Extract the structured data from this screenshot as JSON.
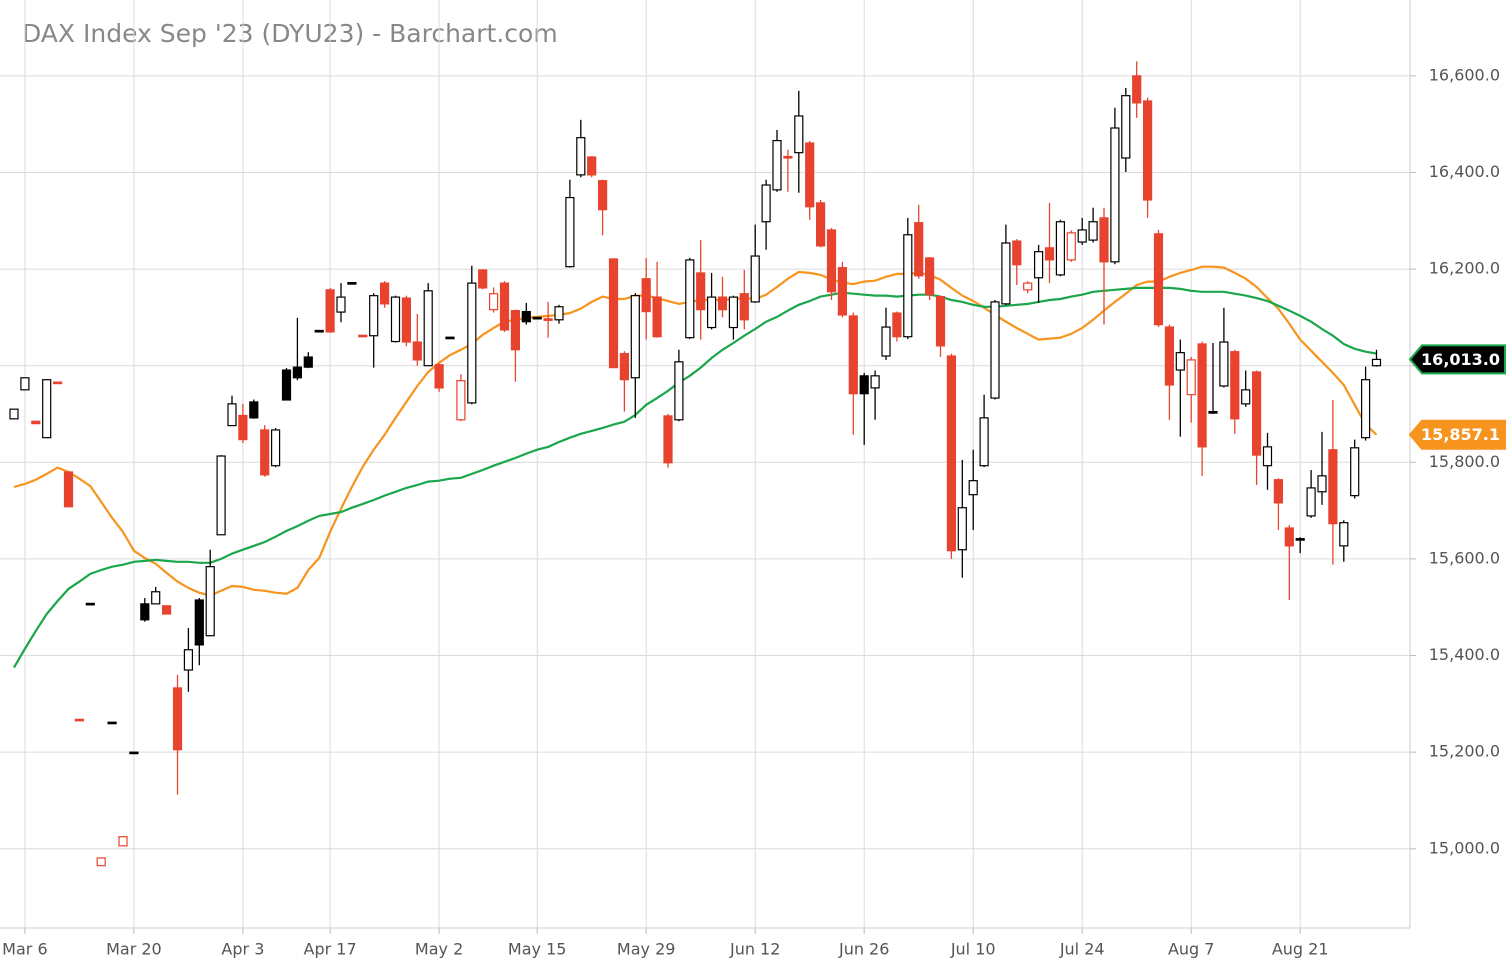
{
  "chart_data": {
    "type": "candlestick",
    "title": "DAX Index Sep '23 (DYU23) - Barchart.com",
    "categories": [
      null,
      "Mar 6",
      null,
      null,
      null,
      null,
      null,
      null,
      null,
      null,
      null,
      "Mar 20",
      null,
      null,
      null,
      null,
      null,
      null,
      null,
      null,
      null,
      "Apr 3",
      null,
      null,
      null,
      null,
      null,
      null,
      null,
      "Apr 17",
      null,
      null,
      null,
      null,
      null,
      null,
      null,
      null,
      null,
      "May 2",
      null,
      null,
      null,
      null,
      null,
      null,
      null,
      null,
      "May 15",
      null,
      null,
      null,
      null,
      null,
      null,
      null,
      null,
      null,
      "May 29",
      null,
      null,
      null,
      null,
      null,
      null,
      null,
      null,
      null,
      "Jun 12",
      null,
      null,
      null,
      null,
      null,
      null,
      null,
      null,
      null,
      "Jun 26",
      null,
      null,
      null,
      null,
      null,
      null,
      null,
      null,
      null,
      "Jul 10",
      null,
      null,
      null,
      null,
      null,
      null,
      null,
      null,
      null,
      "Jul 24",
      null,
      null,
      null,
      null,
      null,
      null,
      null,
      null,
      null,
      "Aug 7",
      null,
      null,
      null,
      null,
      null,
      null,
      null,
      null,
      null,
      "Aug 21",
      null,
      null,
      null,
      null,
      null,
      null,
      null
    ],
    "ohlc": {
      "up_color": "#000000",
      "down_color": "#e8432e",
      "open": [
        15890,
        15950,
        15885,
        15851,
        15966,
        15780,
        15268,
        15508,
        14965,
        15262,
        15006,
        15200,
        15507,
        15507,
        15503,
        15333,
        15370,
        15515,
        15441,
        15650,
        15876,
        15897,
        15925,
        15867,
        15793,
        15991,
        15997,
        16018,
        16073,
        16157,
        16111,
        16172,
        16063,
        16062,
        16171,
        16050,
        16140,
        16049,
        16000,
        16002,
        16059,
        15888,
        15923,
        16198,
        16116,
        16171,
        16114,
        16112,
        16100,
        16097,
        16095,
        16205,
        16395,
        16432,
        16383,
        16221,
        16025,
        15975,
        16180,
        16142,
        15896,
        15888,
        16058,
        16192,
        16079,
        16142,
        16079,
        16149,
        16132,
        16298,
        16364,
        16433,
        16441,
        16461,
        16337,
        16281,
        16203,
        16103,
        15979,
        15954,
        16020,
        16109,
        16060,
        16296,
        16223,
        16143,
        16020,
        15619,
        15733,
        15793,
        15933,
        16128,
        16258,
        16157,
        16182,
        16244,
        16188,
        16219,
        16256,
        16260,
        16306,
        16215,
        16430,
        16600,
        16548,
        16273,
        16080,
        15991,
        15940,
        16045,
        15905,
        15958,
        16029,
        15921,
        15987,
        15793,
        15764,
        15664,
        15642,
        15689,
        15739,
        15826,
        15627,
        15731,
        15851,
        16000
      ],
      "high": [
        15910,
        15975,
        15885,
        15971,
        15966,
        15780,
        15268,
        15508,
        14981,
        15262,
        15025,
        15200,
        15519,
        15542,
        15503,
        15360,
        15457,
        15519,
        15619,
        15815,
        15938,
        15921,
        15930,
        15877,
        15871,
        15995,
        16099,
        16028,
        16073,
        16161,
        16171,
        16172,
        16063,
        16150,
        16175,
        16145,
        16145,
        16107,
        16171,
        16005,
        16059,
        15982,
        16207,
        16200,
        16162,
        16175,
        16116,
        16130,
        16100,
        16132,
        16126,
        16385,
        16509,
        16434,
        16385,
        16221,
        16030,
        16150,
        16223,
        16215,
        15900,
        16033,
        16223,
        16260,
        16192,
        16184,
        16145,
        16198,
        16292,
        16385,
        16488,
        16447,
        16569,
        16465,
        16343,
        16285,
        16215,
        16110,
        15985,
        15990,
        16120,
        16112,
        16306,
        16333,
        16225,
        16145,
        16025,
        15805,
        15826,
        15940,
        16136,
        16292,
        16262,
        16175,
        16250,
        16337,
        16302,
        16280,
        16306,
        16327,
        16327,
        16534,
        16575,
        16630,
        16555,
        16281,
        16085,
        16054,
        16018,
        16050,
        16047,
        16120,
        16033,
        15990,
        15990,
        15861,
        15767,
        15670,
        15645,
        15784,
        15863,
        15929,
        15680,
        15847,
        15998,
        16033
      ],
      "low": [
        15890,
        15950,
        15880,
        15851,
        15964,
        15708,
        15266,
        15506,
        14965,
        15260,
        15006,
        15198,
        15470,
        15507,
        15486,
        15112,
        15325,
        15380,
        15441,
        15650,
        15876,
        15840,
        15890,
        15770,
        15790,
        15928,
        15970,
        15995,
        16071,
        16068,
        16090,
        16170,
        16061,
        15996,
        16120,
        16048,
        16040,
        16000,
        16000,
        15946,
        16057,
        15885,
        15920,
        16158,
        16110,
        16070,
        15967,
        16085,
        16098,
        16058,
        16087,
        16203,
        16390,
        16390,
        16270,
        15996,
        15905,
        15892,
        16054,
        16058,
        15789,
        15885,
        16055,
        16054,
        16075,
        16100,
        16054,
        16075,
        16130,
        16240,
        16360,
        16360,
        16358,
        16302,
        16245,
        16136,
        16100,
        15857,
        15836,
        15888,
        16012,
        16050,
        16055,
        16180,
        16136,
        16018,
        15600,
        15561,
        15660,
        15790,
        15930,
        16125,
        16167,
        16150,
        16130,
        16171,
        16185,
        16215,
        16250,
        16255,
        16085,
        16210,
        16401,
        16513,
        16306,
        16080,
        15888,
        15853,
        15882,
        15772,
        15900,
        15955,
        15859,
        15915,
        15753,
        15743,
        15660,
        15515,
        15612,
        15685,
        15712,
        15588,
        15594,
        15725,
        15845,
        15998
      ],
      "close": [
        15910,
        15975,
        15880,
        15971,
        15964,
        15708,
        15266,
        15506,
        14981,
        15260,
        15025,
        15198,
        15474,
        15532,
        15486,
        15205,
        15412,
        15422,
        15584,
        15813,
        15921,
        15847,
        15892,
        15774,
        15867,
        15929,
        15975,
        15997,
        16071,
        16070,
        16142,
        16170,
        16061,
        16145,
        16128,
        16142,
        16049,
        16012,
        16155,
        15954,
        16057,
        15969,
        16171,
        16161,
        16149,
        16074,
        16033,
        16091,
        16098,
        16094,
        16122,
        16348,
        16472,
        16395,
        16323,
        15996,
        15971,
        16145,
        16112,
        16060,
        15799,
        16008,
        16219,
        16116,
        16142,
        16116,
        16142,
        16095,
        16227,
        16374,
        16466,
        16430,
        16517,
        16329,
        16248,
        16153,
        16105,
        15942,
        15942,
        15979,
        16080,
        16060,
        16271,
        16186,
        16147,
        16041,
        15617,
        15706,
        15762,
        15892,
        16132,
        16254,
        16209,
        16171,
        16236,
        16219,
        16298,
        16275,
        16281,
        16298,
        16215,
        16492,
        16559,
        16544,
        16343,
        16085,
        15960,
        16027,
        16012,
        15832,
        15903,
        16049,
        15890,
        15950,
        15815,
        15832,
        15716,
        15627,
        15640,
        15747,
        15772,
        15673,
        15675,
        15830,
        15971,
        16013
      ],
      "value_labels": [
        null,
        null,
        null,
        null,
        null,
        null,
        null,
        null,
        null,
        null,
        null,
        null,
        null,
        null,
        null,
        null,
        null,
        null,
        null,
        null,
        null,
        null,
        null,
        null,
        null,
        null,
        null,
        null,
        null,
        null,
        null,
        null,
        null,
        null,
        null,
        null,
        null,
        null,
        null,
        null,
        null,
        null,
        null,
        null,
        null,
        null,
        null,
        null,
        null,
        null,
        null,
        null,
        null,
        null,
        null,
        null,
        null,
        null,
        null,
        null,
        null,
        null,
        null,
        null,
        null,
        null,
        null,
        null,
        null,
        null,
        null,
        null,
        null,
        null,
        null,
        null,
        null,
        null,
        null,
        null,
        null,
        null,
        null,
        null,
        null,
        null,
        null,
        null,
        null,
        null,
        null,
        null,
        null,
        null,
        null,
        null,
        null,
        null,
        null,
        null,
        null,
        null,
        null,
        null,
        null,
        null,
        null,
        null,
        null,
        null,
        null,
        null,
        null,
        null,
        null,
        null,
        null,
        null,
        null,
        null,
        null,
        null,
        null,
        null,
        null,
        "16,013.0"
      ]
    },
    "lines": [
      {
        "color": "#f7941d",
        "values": [
          15749,
          15755,
          15764,
          15776,
          15789,
          15780,
          15766,
          15751,
          15718,
          15685,
          15656,
          15617,
          15602,
          15590,
          15571,
          15553,
          15540,
          15530,
          15524,
          15534,
          15544,
          15542,
          15536,
          15534,
          15530,
          15528,
          15540,
          15577,
          15602,
          15656,
          15704,
          15749,
          15791,
          15826,
          15857,
          15892,
          15925,
          15958,
          15987,
          16006,
          16022,
          16033,
          16045,
          16064,
          16078,
          16091,
          16095,
          16099,
          16101,
          16103,
          16105,
          16109,
          16118,
          16132,
          16143,
          16138,
          16138,
          16145,
          16145,
          16140,
          16134,
          16128,
          16132,
          16136,
          16136,
          16136,
          16138,
          16140,
          16138,
          16147,
          16163,
          16180,
          16194,
          16192,
          16188,
          16178,
          16172,
          16169,
          16174,
          16176,
          16184,
          16190,
          16190,
          16192,
          16188,
          16178,
          16161,
          16145,
          16134,
          16120,
          16105,
          16091,
          16078,
          16066,
          16054,
          16056,
          16058,
          16066,
          16078,
          16095,
          16114,
          16132,
          16149,
          16167,
          16174,
          16174,
          16184,
          16192,
          16198,
          16205,
          16205,
          16203,
          16192,
          16180,
          16163,
          16140,
          16118,
          16087,
          16054,
          16031,
          16008,
          15985,
          15960,
          15919,
          15878,
          15857.1
        ],
        "value_labels": [
          null,
          null,
          null,
          null,
          null,
          null,
          null,
          null,
          null,
          null,
          null,
          null,
          null,
          null,
          null,
          null,
          null,
          null,
          null,
          null,
          null,
          null,
          null,
          null,
          null,
          null,
          null,
          null,
          null,
          null,
          null,
          null,
          null,
          null,
          null,
          null,
          null,
          null,
          null,
          null,
          null,
          null,
          null,
          null,
          null,
          null,
          null,
          null,
          null,
          null,
          null,
          null,
          null,
          null,
          null,
          null,
          null,
          null,
          null,
          null,
          null,
          null,
          null,
          null,
          null,
          null,
          null,
          null,
          null,
          null,
          null,
          null,
          null,
          null,
          null,
          null,
          null,
          null,
          null,
          null,
          null,
          null,
          null,
          null,
          null,
          null,
          null,
          null,
          null,
          null,
          null,
          null,
          null,
          null,
          null,
          null,
          null,
          null,
          null,
          null,
          null,
          null,
          null,
          null,
          null,
          null,
          null,
          null,
          null,
          null,
          null,
          null,
          null,
          null,
          null,
          null,
          null,
          null,
          null,
          null,
          null,
          null,
          null,
          null,
          null,
          "15,857.1"
        ]
      },
      {
        "color": "#1aa64a",
        "values": [
          15375,
          15414,
          15451,
          15486,
          15513,
          15538,
          15553,
          15569,
          15577,
          15584,
          15588,
          15594,
          15596,
          15598,
          15596,
          15594,
          15594,
          15592,
          15592,
          15600,
          15611,
          15619,
          15627,
          15635,
          15646,
          15658,
          15668,
          15679,
          15689,
          15693,
          15697,
          15706,
          15714,
          15722,
          15731,
          15739,
          15747,
          15753,
          15760,
          15762,
          15766,
          15768,
          15776,
          15784,
          15793,
          15801,
          15809,
          15818,
          15826,
          15832,
          15842,
          15851,
          15859,
          15865,
          15871,
          15878,
          15884,
          15898,
          15919,
          15933,
          15948,
          15965,
          15979,
          15996,
          16016,
          16033,
          16047,
          16062,
          16076,
          16091,
          16101,
          16114,
          16126,
          16134,
          16143,
          16147,
          16151,
          16149,
          16147,
          16145,
          16145,
          16143,
          16145,
          16147,
          16147,
          16143,
          16136,
          16132,
          16126,
          16122,
          16122,
          16124,
          16126,
          16128,
          16132,
          16136,
          16138,
          16143,
          16147,
          16153,
          16155,
          16157,
          16159,
          16161,
          16161,
          16161,
          16161,
          16159,
          16155,
          16153,
          16153,
          16153,
          16149,
          16145,
          16140,
          16134,
          16124,
          16114,
          16103,
          16091,
          16076,
          16062,
          16045,
          16035,
          16029,
          16025
        ]
      }
    ],
    "ylim": [
      14836,
      16757
    ],
    "yticks": [
      {
        "value": 15000,
        "label": "15,000.0"
      },
      {
        "value": 15200,
        "label": "15,200.0"
      },
      {
        "value": 15400,
        "label": "15,400.0"
      },
      {
        "value": 15600,
        "label": "15,600.0"
      },
      {
        "value": 15800,
        "label": "15,800.0"
      },
      {
        "value": 16000,
        "label": "16,000.0"
      },
      {
        "value": 16200,
        "label": "16,200.0"
      },
      {
        "value": 16400,
        "label": "16,400.0"
      },
      {
        "value": 16600,
        "label": "16,600.0"
      }
    ],
    "grid": true
  }
}
